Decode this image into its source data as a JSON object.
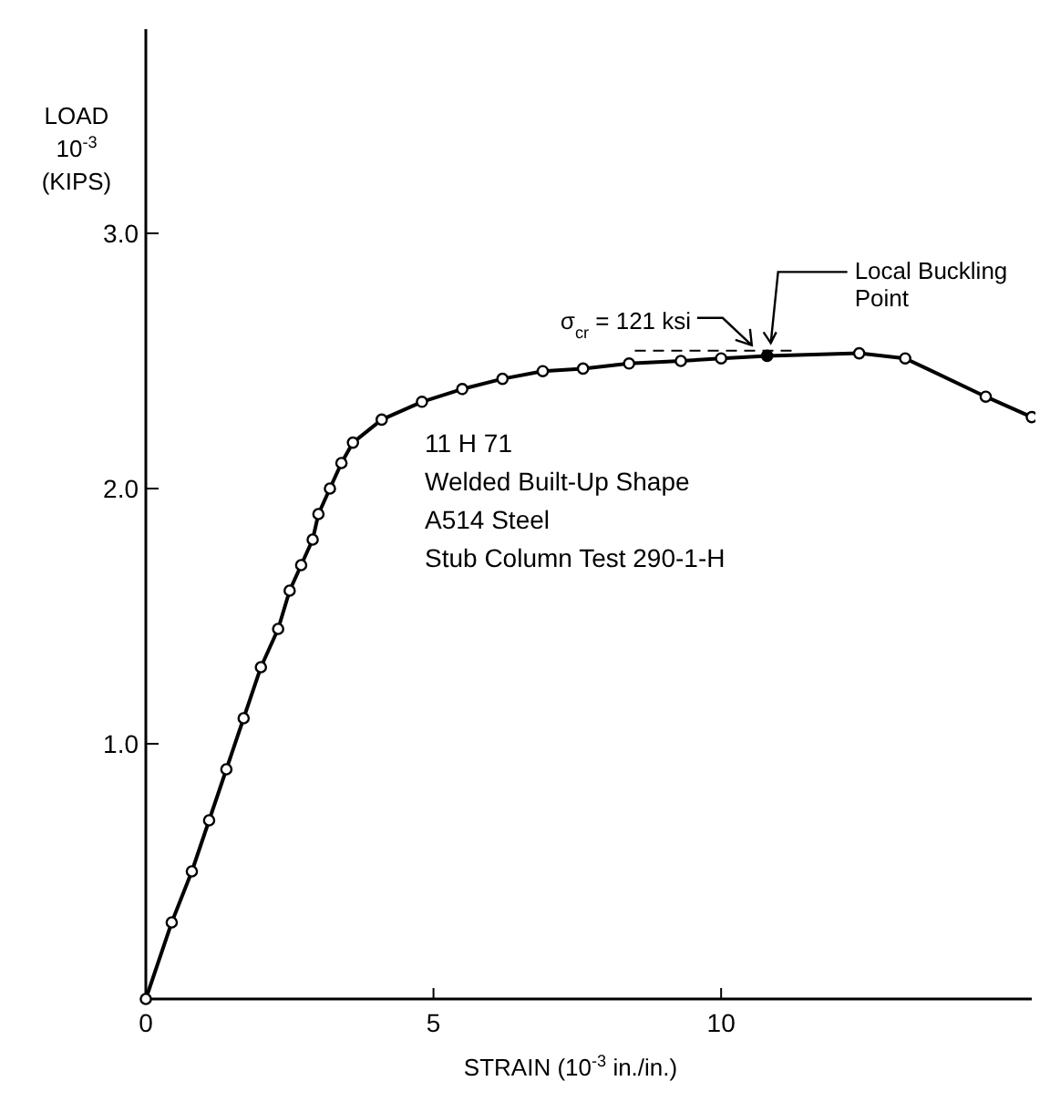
{
  "chart_data": {
    "type": "line",
    "xlabel": "STRAIN (10$^{-3}$ in./in.)",
    "ylabel": "LOAD\n10$^{-3}$\n(KIPS)",
    "xlim": [
      0,
      15.4
    ],
    "ylim": [
      0,
      3.8
    ],
    "xticks": [
      0,
      5,
      10
    ],
    "yticks": [
      {
        "value": 1,
        "label": "1.0"
      },
      {
        "value": 2,
        "label": "2.0"
      },
      {
        "value": 3,
        "label": "3.0"
      }
    ],
    "grid": false,
    "series": [
      {
        "color": "#000000",
        "marker": "circle",
        "line_style": "solid",
        "x": [
          0,
          0.45,
          0.8,
          1.1,
          1.4,
          1.7,
          2.0,
          2.3,
          2.5,
          2.7,
          2.9,
          3.0,
          3.2,
          3.4,
          3.6,
          4.1,
          4.8,
          5.5,
          6.2,
          6.9,
          7.6,
          8.4,
          9.3,
          10.0,
          10.8,
          12.4,
          13.2,
          14.6,
          15.4
        ],
        "values": [
          0,
          0.3,
          0.5,
          0.7,
          0.9,
          1.1,
          1.3,
          1.45,
          1.6,
          1.7,
          1.8,
          1.9,
          2.0,
          2.1,
          2.18,
          2.27,
          2.34,
          2.39,
          2.43,
          2.46,
          2.47,
          2.49,
          2.5,
          2.51,
          2.52,
          2.53,
          2.51,
          2.36,
          2.28
        ]
      },
      {
        "type": "line",
        "color": "#000000",
        "marker": "none",
        "line_style": "dashed",
        "x": [
          8.5,
          11.3
        ],
        "values": [
          2.54,
          2.54
        ]
      },
      {
        "type": "scatter",
        "color": "#000000",
        "marker": "circle",
        "x": [
          10.8
        ],
        "values": [
          2.52
        ]
      }
    ],
    "annotations": [
      {
        "text": "σ$_{cr}$ = 121 ksi",
        "x": 9.9,
        "y": 2.54
      },
      {
        "text": "Local Buckling\nPoint",
        "x": 10.8,
        "y": 2.52
      },
      "11 H 71\nWelded Built-Up Shape\nA514 Steel\nStub Column Test 290-1-H"
    ]
  }
}
